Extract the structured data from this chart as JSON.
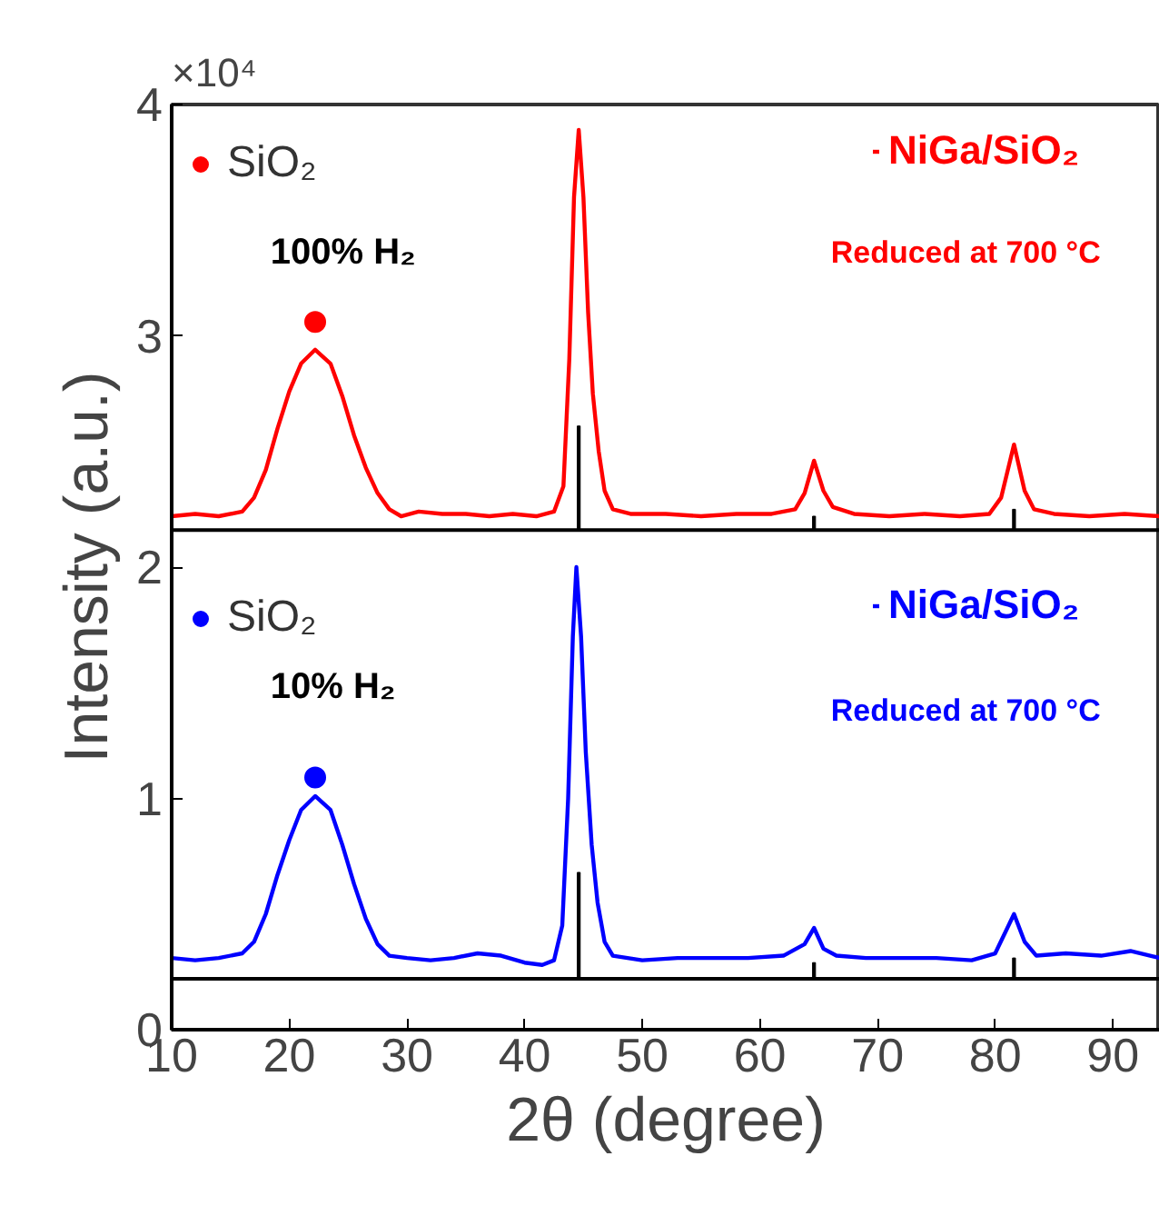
{
  "chart_data": {
    "type": "line",
    "xlabel": "2θ (degree)",
    "ylabel": "Intensity (a.u.)",
    "xlim": [
      10,
      94
    ],
    "xticks": [
      10,
      20,
      30,
      40,
      50,
      60,
      70,
      80,
      90
    ],
    "ylim": [
      0,
      4
    ],
    "yticks": [
      0,
      1,
      2,
      3,
      4
    ],
    "grid": false,
    "legend": "top left",
    "annotations": [
      "×10⁴",
      "100% H₂",
      "Reduced at 700 °C",
      "10% H₂",
      "Reduced at 700 °C"
    ],
    "ref_lines": [
      {
        "axis": "y",
        "value": 2.16,
        "color": "#000000"
      },
      {
        "axis": "y",
        "value": 0.22,
        "color": "#000000"
      }
    ],
    "series": [
      {
        "name": "NiGa/SiO₂",
        "color": "#ff0000",
        "x": [
          10,
          12,
          14,
          16,
          17,
          18,
          19,
          20,
          21,
          22.2,
          23.5,
          24.5,
          25.5,
          26.5,
          27.5,
          28.5,
          29.5,
          31,
          33,
          35,
          37,
          39,
          41,
          42.5,
          43.3,
          43.8,
          44.2,
          44.6,
          45.0,
          45.4,
          45.8,
          46.3,
          46.8,
          47.5,
          49,
          52,
          55,
          58,
          61,
          63,
          63.8,
          64.6,
          65.4,
          66.2,
          68,
          71,
          74,
          77,
          79.5,
          80.5,
          81.6,
          82.5,
          83.3,
          85,
          88,
          91,
          94
        ],
        "values": [
          2.22,
          2.23,
          2.22,
          2.24,
          2.3,
          2.42,
          2.6,
          2.76,
          2.88,
          2.94,
          2.88,
          2.74,
          2.57,
          2.43,
          2.32,
          2.25,
          2.22,
          2.24,
          2.23,
          2.23,
          2.22,
          2.23,
          2.22,
          2.24,
          2.35,
          2.9,
          3.6,
          3.89,
          3.6,
          3.1,
          2.75,
          2.5,
          2.33,
          2.25,
          2.23,
          2.23,
          2.22,
          2.23,
          2.23,
          2.25,
          2.32,
          2.46,
          2.33,
          2.26,
          2.23,
          2.22,
          2.23,
          2.22,
          2.23,
          2.3,
          2.53,
          2.33,
          2.25,
          2.23,
          2.22,
          2.23,
          2.22
        ]
      },
      {
        "name": "NiGa/SiO₂",
        "color": "#0000ff",
        "x": [
          10,
          12,
          14,
          16,
          17,
          18,
          19,
          20,
          21,
          22.2,
          23.5,
          24.5,
          25.5,
          26.5,
          27.5,
          28.5,
          30,
          32,
          34,
          36,
          38,
          40,
          41.5,
          42.5,
          43.2,
          43.7,
          44.1,
          44.4,
          44.8,
          45.2,
          45.7,
          46.2,
          46.8,
          47.5,
          50,
          53,
          56,
          59,
          62,
          63.8,
          64.6,
          65.4,
          66.5,
          69,
          72,
          75,
          78,
          80,
          81.6,
          82.5,
          83.5,
          86,
          89,
          91.5,
          94
        ],
        "values": [
          0.31,
          0.3,
          0.31,
          0.33,
          0.38,
          0.5,
          0.67,
          0.82,
          0.95,
          1.01,
          0.95,
          0.8,
          0.63,
          0.48,
          0.37,
          0.32,
          0.31,
          0.3,
          0.31,
          0.33,
          0.32,
          0.29,
          0.28,
          0.3,
          0.45,
          1.0,
          1.7,
          2.0,
          1.7,
          1.2,
          0.8,
          0.55,
          0.38,
          0.32,
          0.3,
          0.31,
          0.31,
          0.31,
          0.32,
          0.37,
          0.44,
          0.35,
          0.32,
          0.31,
          0.31,
          0.31,
          0.3,
          0.33,
          0.5,
          0.38,
          0.32,
          0.33,
          0.32,
          0.34,
          0.31
        ]
      },
      {
        "type": "bar",
        "color": "#000000",
        "x": [
          44.6,
          64.6,
          81.6
        ],
        "base": [
          2.16,
          2.16,
          2.16
        ],
        "values": [
          0.45,
          0.06,
          0.09
        ]
      },
      {
        "type": "bar",
        "color": "#000000",
        "x": [
          44.6,
          64.6,
          81.6
        ],
        "base": [
          0.22,
          0.22,
          0.22
        ],
        "values": [
          0.46,
          0.07,
          0.09
        ]
      },
      {
        "type": "scatter",
        "name": "SiO₂",
        "color": "#ff0000",
        "marker": "circle",
        "x": [
          22.2
        ],
        "values": [
          3.06
        ]
      },
      {
        "type": "scatter",
        "name": "SiO₂",
        "color": "#0000ff",
        "marker": "circle",
        "x": [
          22.2
        ],
        "values": [
          1.09
        ]
      }
    ]
  }
}
